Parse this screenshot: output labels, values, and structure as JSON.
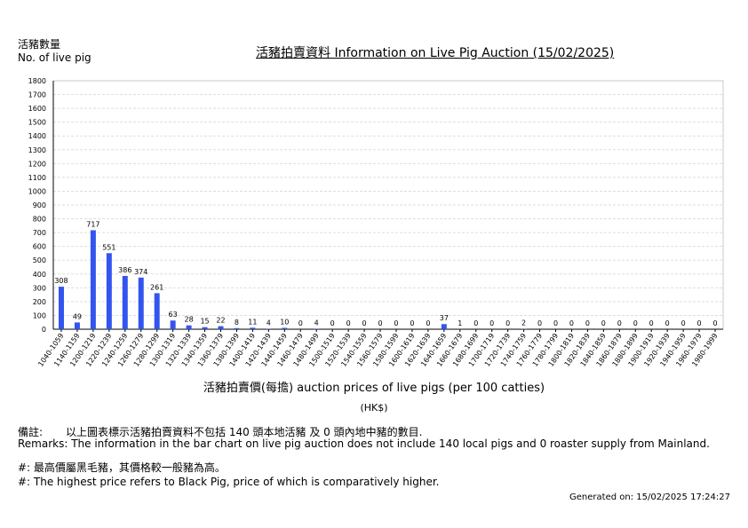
{
  "header": {
    "y_unit_zh": "活豬數量",
    "y_unit_en": "No. of live pig",
    "title": "活豬拍賣資料 Information on Live Pig Auction (15/02/2025)"
  },
  "chart_data": {
    "type": "bar",
    "title": "活豬拍賣資料 Information on Live Pig Auction (15/02/2025)",
    "ylabel": "活豬數量 No. of live pig",
    "xlabel": "活豬拍賣價(每擔) auction prices of live pigs (per 100 catties)",
    "x_unit": "(HK$)",
    "ylim": [
      0,
      1800
    ],
    "yticks": [
      0,
      100,
      200,
      300,
      400,
      500,
      600,
      700,
      800,
      900,
      1000,
      1100,
      1200,
      1300,
      1400,
      1500,
      1600,
      1700,
      1800
    ],
    "grid": true,
    "bar_color": "#3355ee",
    "categories": [
      "1040-1059",
      "1140-1159",
      "1200-1219",
      "1220-1239",
      "1240-1259",
      "1260-1279",
      "1280-1299",
      "1300-1319",
      "1320-1339",
      "1340-1359",
      "1360-1379",
      "1380-1399",
      "1400-1419",
      "1420-1439",
      "1440-1459",
      "1460-1479",
      "1480-1499",
      "1500-1519",
      "1520-1539",
      "1540-1559",
      "1560-1579",
      "1580-1599",
      "1600-1619",
      "1620-1639",
      "1640-1659",
      "1660-1679",
      "1680-1699",
      "1700-1719",
      "1720-1739",
      "1740-1759",
      "1760-1779",
      "1780-1799",
      "1800-1819",
      "1820-1839",
      "1840-1859",
      "1860-1879",
      "1880-1899",
      "1900-1919",
      "1920-1939",
      "1940-1959",
      "1960-1979",
      "1980-1999"
    ],
    "values": [
      308,
      49,
      717,
      551,
      386,
      374,
      261,
      63,
      28,
      15,
      22,
      8,
      11,
      4,
      10,
      0,
      4,
      0,
      0,
      0,
      0,
      0,
      0,
      0,
      37,
      1,
      0,
      0,
      0,
      2,
      0,
      0,
      0,
      0,
      0,
      0,
      0,
      0,
      0,
      0,
      0,
      0
    ]
  },
  "remarks": {
    "zh_label": "備註:",
    "zh_text": "以上圖表標示活豬拍賣資料不包括 140 頭本地活豬 及 0 頭內地中豬的數目.",
    "en_text": "Remarks: The information in the bar chart on live pig auction does not include 140 local pigs and 0 roaster supply from Mainland.",
    "note_zh": "#: 最高價屬黑毛豬，其價格較一般豬為高。",
    "note_en": "#: The highest price refers to Black Pig, price of which is comparatively higher.",
    "generated": "Generated on: 15/02/2025 17:24:27"
  }
}
